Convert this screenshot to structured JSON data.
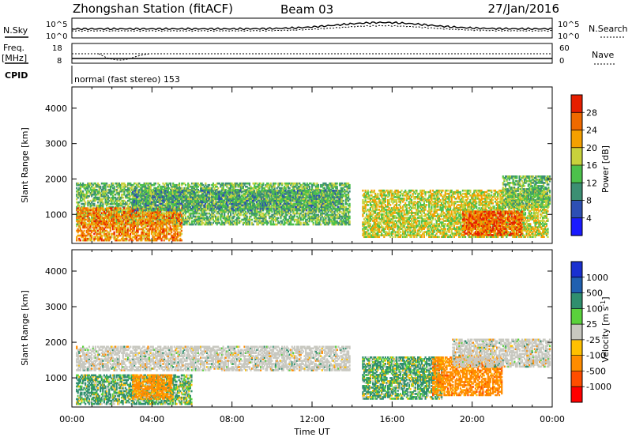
{
  "header": {
    "station": "Zhongshan Station (fitACF)",
    "beam": "Beam 03",
    "date": "27/Jan/2016"
  },
  "top_panels": {
    "nsky_label": "N.Sky",
    "nsearch_label": "N.Search",
    "noise_tick_high": "10^5",
    "noise_tick_low": "10^0",
    "freq_label": "Freq.",
    "freq_unit": "[MHz]",
    "freq_ticks": [
      "18",
      "8"
    ],
    "nave_label": "Nave",
    "nave_ticks": [
      "60",
      "0"
    ],
    "cpid_label": "CPID",
    "cpid_text": "normal (fast stereo) 153"
  },
  "colors": {
    "power_scale": [
      "#1a1aff",
      "#2d4fb4",
      "#3c8f73",
      "#4cc14b",
      "#c8d23c",
      "#f5a000",
      "#f06a00",
      "#e61e00"
    ],
    "velocity_scale": [
      "#ff0000",
      "#ff4d00",
      "#ff8c00",
      "#ffc000",
      "#c8c8c0",
      "#5ad23c",
      "#2f8f6e",
      "#2060b0",
      "#1a30d0"
    ],
    "ground_scatter": "#c8c8c0"
  },
  "chart_data": [
    {
      "type": "heatmap",
      "title": "",
      "xlabel": "",
      "ylabel": "Slant Range [km]",
      "xlim": [
        "00:00",
        "00:00"
      ],
      "ylim": [
        180,
        4600
      ],
      "x_ticks": [
        "00:00",
        "04:00",
        "08:00",
        "12:00",
        "16:00",
        "20:00",
        "00:00"
      ],
      "y_ticks": [
        1000,
        2000,
        3000,
        4000
      ],
      "colorbar": {
        "label": "Power [dB]",
        "ticks": [
          "4",
          "8",
          "12",
          "16",
          "20",
          "24",
          "28"
        ]
      },
      "regions": [
        {
          "t_start_h": 0.2,
          "t_end_h": 13.9,
          "range_low_km": 700,
          "range_high_km": 1900,
          "value_db": 14
        },
        {
          "t_start_h": 0.2,
          "t_end_h": 5.5,
          "range_low_km": 250,
          "range_high_km": 1200,
          "value_db": 24
        },
        {
          "t_start_h": 3.0,
          "t_end_h": 13.5,
          "range_low_km": 1100,
          "range_high_km": 1700,
          "value_db": 12
        },
        {
          "t_start_h": 14.5,
          "t_end_h": 23.8,
          "range_low_km": 350,
          "range_high_km": 1700,
          "value_db": 18
        },
        {
          "t_start_h": 19.5,
          "t_end_h": 22.5,
          "range_low_km": 400,
          "range_high_km": 1100,
          "value_db": 26
        },
        {
          "t_start_h": 21.5,
          "t_end_h": 23.9,
          "range_low_km": 1200,
          "range_high_km": 2100,
          "value_db": 14
        }
      ]
    },
    {
      "type": "heatmap",
      "title": "",
      "xlabel": "Time UT",
      "ylabel": "Slant Range [km]",
      "xlim": [
        "00:00",
        "00:00"
      ],
      "ylim": [
        180,
        4600
      ],
      "x_ticks": [
        "00:00",
        "04:00",
        "08:00",
        "12:00",
        "16:00",
        "20:00",
        "00:00"
      ],
      "y_ticks": [
        1000,
        2000,
        3000,
        4000
      ],
      "colorbar": {
        "label": "Velocity [m s^-1]",
        "ticks": [
          "-1000",
          "-500",
          "-100",
          "-25",
          "25",
          "100",
          "500",
          "1000"
        ]
      },
      "regions": [
        {
          "t_start_h": 0.2,
          "t_end_h": 13.9,
          "range_low_km": 1200,
          "range_high_km": 1900,
          "value_ms": 0
        },
        {
          "t_start_h": 0.2,
          "t_end_h": 6.0,
          "range_low_km": 250,
          "range_high_km": 1100,
          "value_ms": 150
        },
        {
          "t_start_h": 3.0,
          "t_end_h": 5.0,
          "range_low_km": 400,
          "range_high_km": 1100,
          "value_ms": -250
        },
        {
          "t_start_h": 14.5,
          "t_end_h": 18.5,
          "range_low_km": 400,
          "range_high_km": 1600,
          "value_ms": 150
        },
        {
          "t_start_h": 18.0,
          "t_end_h": 21.5,
          "range_low_km": 500,
          "range_high_km": 1600,
          "value_ms": -300
        },
        {
          "t_start_h": 19.0,
          "t_end_h": 23.9,
          "range_low_km": 1300,
          "range_high_km": 2100,
          "value_ms": 0
        }
      ]
    }
  ]
}
